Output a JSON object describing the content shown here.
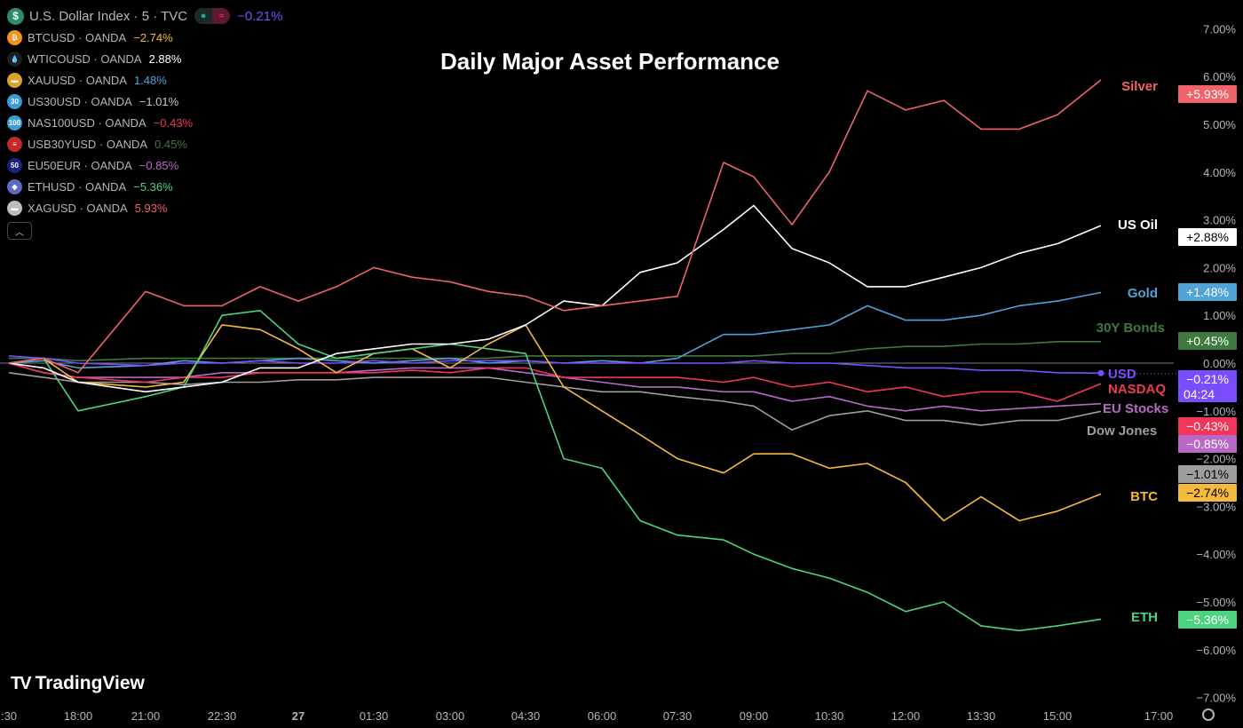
{
  "legend": {
    "main": {
      "symbol": "U.S. Dollar Index · 5 · TVC",
      "change": "−0.21%",
      "change_color": "#7c4dff",
      "icon": "dollar-icon",
      "icon_color": "#2e8b6f",
      "status_dot_color": "#26a69a",
      "status_wave_glyph": "≈"
    },
    "items": [
      {
        "symbol": "BTCUSD · OANDA",
        "change": "−2.74%",
        "color": "#f5b93c",
        "icon": "bitcoin-icon",
        "icon_text": "₿",
        "icon_bg": "#f7931a"
      },
      {
        "symbol": "WTICOUSD · OANDA",
        "change": "2.88%",
        "color": "#ffffff",
        "icon": "oil-drop-icon",
        "icon_text": "💧",
        "icon_bg": "#1e1e1e"
      },
      {
        "symbol": "XAUUSD · OANDA",
        "change": "1.48%",
        "color": "#4fa3d8",
        "icon": "gold-bars-icon",
        "icon_text": "▬",
        "icon_bg": "#d9a42b"
      },
      {
        "symbol": "US30USD · OANDA",
        "change": "−1.01%",
        "color": "#c7c7c7",
        "icon": "us30-icon",
        "icon_text": "30",
        "icon_bg": "#3d9bd6"
      },
      {
        "symbol": "NAS100USD · OANDA",
        "change": "−0.43%",
        "color": "#f23659",
        "icon": "nas100-icon",
        "icon_text": "100",
        "icon_bg": "#3d9bd6"
      },
      {
        "symbol": "USB30YUSD · OANDA",
        "change": "0.45%",
        "color": "#3e7a3e",
        "icon": "us-flag-icon",
        "icon_text": "≡",
        "icon_bg": "#c62828"
      },
      {
        "symbol": "EU50EUR · OANDA",
        "change": "−0.85%",
        "color": "#ba68c8",
        "icon": "eu50-icon",
        "icon_text": "50",
        "icon_bg": "#1a237e"
      },
      {
        "symbol": "ETHUSD · OANDA",
        "change": "−5.36%",
        "color": "#4dd37f",
        "icon": "ethereum-icon",
        "icon_text": "◆",
        "icon_bg": "#5c6bc0"
      },
      {
        "symbol": "XAGUSD · OANDA",
        "change": "5.93%",
        "color": "#f0636b",
        "icon": "silver-bars-icon",
        "icon_text": "▬",
        "icon_bg": "#bdbdbd"
      }
    ]
  },
  "branding": {
    "logo_text": "TradingView"
  },
  "chart_data": {
    "type": "line",
    "title": "Daily Major Asset Performance",
    "x": [
      "16:30",
      "17:15",
      "18:00",
      "21:00",
      "21:45",
      "22:30",
      "23:15",
      "27",
      "00:45",
      "01:30",
      "02:15",
      "03:00",
      "03:45",
      "04:30",
      "05:15",
      "06:00",
      "06:45",
      "07:30",
      "08:15",
      "09:00",
      "09:45",
      "10:30",
      "11:15",
      "12:00",
      "12:45",
      "13:30",
      "14:15",
      "15:00",
      "15:45"
    ],
    "x_tick_labels": [
      ":30",
      "18:00",
      "21:00",
      "22:30",
      "27",
      "01:30",
      "03:00",
      "04:30",
      "06:00",
      "07:30",
      "09:00",
      "10:30",
      "12:00",
      "13:30",
      "15:00",
      "17:00"
    ],
    "y_tick_labels": [
      "7.00%",
      "6.00%",
      "5.00%",
      "4.00%",
      "3.00%",
      "2.00%",
      "1.00%",
      "0.00%",
      "−1.00%",
      "−2.00%",
      "−3.00%",
      "−4.00%",
      "−5.00%",
      "−6.00%",
      "−7.00%"
    ],
    "ylim": [
      -7,
      7
    ],
    "y_unit": "%",
    "grid": false,
    "countdown": "04:24",
    "series": [
      {
        "name": "Silver",
        "color": "#f0636b",
        "badge": "+5.93%",
        "values": [
          0,
          0.1,
          -0.2,
          1.5,
          1.2,
          1.2,
          1.6,
          1.3,
          1.6,
          2.0,
          1.8,
          1.7,
          1.5,
          1.4,
          1.1,
          1.2,
          1.3,
          1.4,
          4.2,
          3.9,
          2.9,
          4.0,
          5.7,
          5.3,
          5.5,
          4.9,
          4.9,
          5.2,
          5.93
        ]
      },
      {
        "name": "US Oil",
        "color": "#ffffff",
        "badge": "+2.88%",
        "values": [
          0,
          -0.1,
          -0.4,
          -0.6,
          -0.5,
          -0.4,
          -0.1,
          -0.1,
          0.2,
          0.3,
          0.4,
          0.4,
          0.5,
          0.8,
          1.3,
          1.2,
          1.9,
          2.1,
          2.8,
          3.3,
          2.4,
          2.1,
          1.6,
          1.6,
          1.8,
          2.0,
          2.3,
          2.5,
          2.88
        ]
      },
      {
        "name": "Gold",
        "color": "#4fa3d8",
        "badge": "+1.48%",
        "values": [
          0,
          0.05,
          -0.1,
          -0.05,
          0.05,
          0.0,
          0.05,
          0.1,
          0.05,
          0.0,
          0.05,
          0.1,
          0.0,
          0.05,
          0.0,
          0.05,
          0.0,
          0.1,
          0.6,
          0.6,
          0.7,
          0.8,
          1.2,
          0.9,
          0.9,
          1.0,
          1.2,
          1.3,
          1.48
        ]
      },
      {
        "name": "30Y Bonds",
        "color": "#3e7a3e",
        "badge": "+0.45%",
        "values": [
          0.1,
          0.1,
          0.05,
          0.1,
          0.1,
          0.1,
          0.1,
          0.1,
          0.1,
          0.1,
          0.1,
          0.1,
          0.1,
          0.15,
          0.15,
          0.15,
          0.15,
          0.15,
          0.15,
          0.15,
          0.2,
          0.2,
          0.3,
          0.35,
          0.35,
          0.4,
          0.4,
          0.45,
          0.45
        ]
      },
      {
        "name": "USD",
        "color": "#7c4dff",
        "badge": "−0.21%",
        "values": [
          0.15,
          0.1,
          0.0,
          -0.05,
          0.0,
          0.0,
          0.05,
          0.0,
          0.0,
          0.05,
          0.0,
          0.05,
          0.05,
          0.05,
          0.0,
          0.0,
          0.0,
          0.0,
          0.0,
          0.05,
          0.0,
          0.0,
          -0.05,
          -0.1,
          -0.1,
          -0.15,
          -0.15,
          -0.2,
          -0.21
        ]
      },
      {
        "name": "NASDAQ",
        "color": "#f23659",
        "badge": "−0.43%",
        "values": [
          0,
          -0.2,
          -0.3,
          -0.4,
          -0.3,
          -0.3,
          -0.2,
          -0.2,
          -0.2,
          -0.2,
          -0.15,
          -0.2,
          -0.1,
          -0.1,
          -0.3,
          -0.3,
          -0.3,
          -0.3,
          -0.4,
          -0.3,
          -0.5,
          -0.4,
          -0.6,
          -0.5,
          -0.7,
          -0.6,
          -0.6,
          -0.8,
          -0.43
        ]
      },
      {
        "name": "EU Stocks",
        "color": "#ba68c8",
        "badge": "−0.85%",
        "values": [
          0,
          -0.2,
          -0.3,
          -0.3,
          -0.3,
          -0.2,
          -0.2,
          -0.2,
          -0.2,
          -0.15,
          -0.1,
          -0.1,
          -0.1,
          -0.2,
          -0.3,
          -0.4,
          -0.5,
          -0.5,
          -0.6,
          -0.6,
          -0.8,
          -0.7,
          -0.9,
          -1.0,
          -0.9,
          -1.0,
          -0.95,
          -0.9,
          -0.85
        ]
      },
      {
        "name": "Dow Jones",
        "color": "#9e9e9e",
        "badge": "−1.01%",
        "values": [
          -0.2,
          -0.3,
          -0.4,
          -0.4,
          -0.45,
          -0.4,
          -0.4,
          -0.35,
          -0.35,
          -0.3,
          -0.3,
          -0.3,
          -0.3,
          -0.4,
          -0.5,
          -0.6,
          -0.6,
          -0.7,
          -0.8,
          -0.9,
          -1.4,
          -1.1,
          -1.0,
          -1.2,
          -1.2,
          -1.3,
          -1.2,
          -1.2,
          -1.01
        ]
      },
      {
        "name": "BTC",
        "color": "#f5b93c",
        "badge": "−2.74%",
        "values": [
          0,
          0.1,
          -0.4,
          -0.5,
          -0.4,
          0.8,
          0.7,
          0.3,
          -0.2,
          0.2,
          0.3,
          -0.1,
          0.4,
          0.8,
          -0.5,
          -1.0,
          -1.5,
          -2.0,
          -2.3,
          -1.9,
          -1.9,
          -2.2,
          -2.1,
          -2.5,
          -3.3,
          -2.8,
          -3.3,
          -3.1,
          -2.74
        ]
      },
      {
        "name": "ETH",
        "color": "#4dd37f",
        "badge": "−5.36%",
        "values": [
          0,
          0.1,
          -1.0,
          -0.7,
          -0.5,
          1.0,
          1.1,
          0.4,
          0.1,
          0.2,
          0.3,
          0.4,
          0.3,
          0.2,
          -2.0,
          -2.2,
          -3.3,
          -3.6,
          -3.7,
          -4.0,
          -4.3,
          -4.5,
          -4.8,
          -5.2,
          -5.0,
          -5.5,
          -5.6,
          -5.5,
          -5.36
        ]
      }
    ]
  }
}
